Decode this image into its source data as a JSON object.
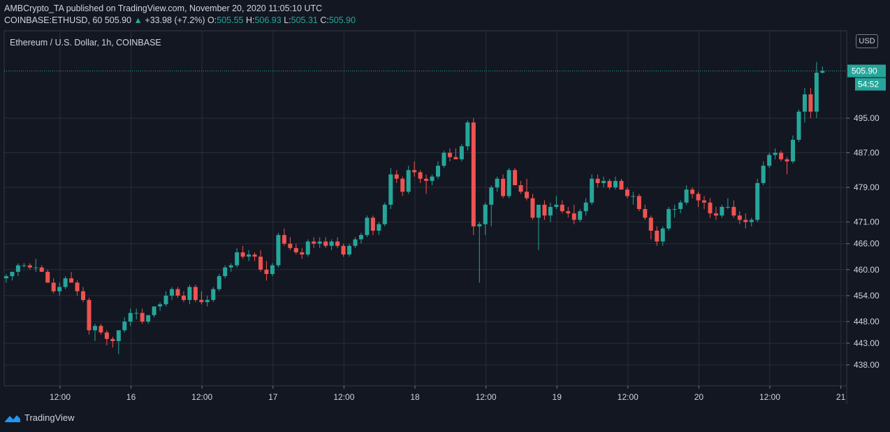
{
  "publish_line": {
    "author": "AMBCrypto_TA",
    "text": "published on TradingView.com, November 20, 2020 11:05:10 UTC"
  },
  "quote_line": {
    "symbol": "COINBASE:ETHUSD, 60",
    "last": "505.90",
    "change": "+33.98 (+7.2%)",
    "open_label": "O:",
    "open": "505.55",
    "high_label": "H:",
    "high": "506.93",
    "low_label": "L:",
    "low": "505.31",
    "close_label": "C:",
    "close": "505.90"
  },
  "currency_button": "USD",
  "brand": "TradingView",
  "colors": {
    "up": "#26a69a",
    "down": "#ef5350",
    "background": "#131722",
    "grid": "#2a2e39"
  },
  "chart_data": {
    "type": "candlestick",
    "title": "Ethereum / U.S. Dollar, 1h, COINBASE",
    "ylabel": "USD",
    "ylim": [
      434,
      515
    ],
    "y_ticks": [
      438,
      443,
      448,
      454,
      460,
      466,
      471,
      479,
      487,
      495
    ],
    "y_tick_labels": [
      "438.00",
      "443.00",
      "448.00",
      "454.00",
      "460.00",
      "466.00",
      "471.00",
      "479.00",
      "487.00",
      "495.00"
    ],
    "x_ticks": [
      {
        "hour": 12,
        "label": "12:00"
      },
      {
        "hour": 24,
        "label": "16"
      },
      {
        "hour": 36,
        "label": "12:00"
      },
      {
        "hour": 48,
        "label": "17"
      },
      {
        "hour": 60,
        "label": "12:00"
      },
      {
        "hour": 72,
        "label": "18"
      },
      {
        "hour": 84,
        "label": "12:00"
      },
      {
        "hour": 96,
        "label": "19"
      },
      {
        "hour": 108,
        "label": "12:00"
      },
      {
        "hour": 120,
        "label": "20"
      },
      {
        "hour": 132,
        "label": "12:00"
      },
      {
        "hour": 144,
        "label": "21"
      }
    ],
    "last_price": {
      "value": 505.9,
      "label": "505.90",
      "countdown": "54:52"
    },
    "candles": [
      [
        458.0,
        459.0,
        457.0,
        458.5
      ],
      [
        458.5,
        459.5,
        457.5,
        459.5
      ],
      [
        459.5,
        461.5,
        458.5,
        461.0
      ],
      [
        461.0,
        461.5,
        460.5,
        461.0
      ],
      [
        461.0,
        461.5,
        460.0,
        460.5
      ],
      [
        460.5,
        462.5,
        459.5,
        460.5
      ],
      [
        460.5,
        461.0,
        459.5,
        459.5
      ],
      [
        459.5,
        460.0,
        457.0,
        457.0
      ],
      [
        457.0,
        458.0,
        454.5,
        455.0
      ],
      [
        455.0,
        457.0,
        454.0,
        456.0
      ],
      [
        456.0,
        458.5,
        455.5,
        458.0
      ],
      [
        458.0,
        459.5,
        457.0,
        457.0
      ],
      [
        457.0,
        457.5,
        454.0,
        455.0
      ],
      [
        455.0,
        456.0,
        452.5,
        453.0
      ],
      [
        453.0,
        453.5,
        445.0,
        446.0
      ],
      [
        446.0,
        447.5,
        443.5,
        447.0
      ],
      [
        447.0,
        447.5,
        445.0,
        445.5
      ],
      [
        445.5,
        446.0,
        442.5,
        444.0
      ],
      [
        444.0,
        444.5,
        442.0,
        443.5
      ],
      [
        443.5,
        446.0,
        440.5,
        446.0
      ],
      [
        446.0,
        449.0,
        445.5,
        448.0
      ],
      [
        448.0,
        451.0,
        447.0,
        450.0
      ],
      [
        450.0,
        451.0,
        448.5,
        450.0
      ],
      [
        450.0,
        451.0,
        447.5,
        448.0
      ],
      [
        448.0,
        449.0,
        447.5,
        449.5
      ],
      [
        449.5,
        451.5,
        449.0,
        451.5
      ],
      [
        451.5,
        452.5,
        450.5,
        452.0
      ],
      [
        452.0,
        455.0,
        451.5,
        454.0
      ],
      [
        454.0,
        456.0,
        453.0,
        455.5
      ],
      [
        455.5,
        456.0,
        453.5,
        454.0
      ],
      [
        454.0,
        455.0,
        452.5,
        453.0
      ],
      [
        453.0,
        456.5,
        452.0,
        456.0
      ],
      [
        456.0,
        456.5,
        452.5,
        453.0
      ],
      [
        453.0,
        455.0,
        452.0,
        452.5
      ],
      [
        452.5,
        454.0,
        451.5,
        453.0
      ],
      [
        453.0,
        456.0,
        452.5,
        455.5
      ],
      [
        455.5,
        459.0,
        455.0,
        458.5
      ],
      [
        458.5,
        461.0,
        458.0,
        460.5
      ],
      [
        460.5,
        461.5,
        459.5,
        461.0
      ],
      [
        461.0,
        465.0,
        460.5,
        464.0
      ],
      [
        464.0,
        465.5,
        462.5,
        463.0
      ],
      [
        463.0,
        464.5,
        462.0,
        463.5
      ],
      [
        463.5,
        464.0,
        462.0,
        463.0
      ],
      [
        463.0,
        464.5,
        459.5,
        460.0
      ],
      [
        460.0,
        462.0,
        457.5,
        459.0
      ],
      [
        459.0,
        461.5,
        458.5,
        461.0
      ],
      [
        461.0,
        468.5,
        460.5,
        468.0
      ],
      [
        468.0,
        469.5,
        465.5,
        466.0
      ],
      [
        466.0,
        467.5,
        464.5,
        465.0
      ],
      [
        465.0,
        466.0,
        463.5,
        464.0
      ],
      [
        464.0,
        465.0,
        462.5,
        463.5
      ],
      [
        463.5,
        467.0,
        463.0,
        466.5
      ],
      [
        466.5,
        467.5,
        465.0,
        466.0
      ],
      [
        466.0,
        467.5,
        465.0,
        466.5
      ],
      [
        466.5,
        467.5,
        465.0,
        465.5
      ],
      [
        465.5,
        467.0,
        464.5,
        466.5
      ],
      [
        466.5,
        467.5,
        465.0,
        465.5
      ],
      [
        465.5,
        466.0,
        463.0,
        463.5
      ],
      [
        463.5,
        466.0,
        463.0,
        465.5
      ],
      [
        465.5,
        467.5,
        465.0,
        467.0
      ],
      [
        467.0,
        468.5,
        466.0,
        468.0
      ],
      [
        468.0,
        472.5,
        467.5,
        472.0
      ],
      [
        472.0,
        472.5,
        468.0,
        469.0
      ],
      [
        469.0,
        471.0,
        468.0,
        470.5
      ],
      [
        470.5,
        475.5,
        470.0,
        475.0
      ],
      [
        475.0,
        483.5,
        474.0,
        482.0
      ],
      [
        482.0,
        483.0,
        480.0,
        481.0
      ],
      [
        481.0,
        481.5,
        477.0,
        478.0
      ],
      [
        478.0,
        484.0,
        477.5,
        483.0
      ],
      [
        483.0,
        485.0,
        481.5,
        482.5
      ],
      [
        482.5,
        483.0,
        480.0,
        481.0
      ],
      [
        481.0,
        482.0,
        477.5,
        480.5
      ],
      [
        480.5,
        482.0,
        479.5,
        481.5
      ],
      [
        481.5,
        485.0,
        481.0,
        484.0
      ],
      [
        484.0,
        487.5,
        483.5,
        487.0
      ],
      [
        487.0,
        488.0,
        485.0,
        486.0
      ],
      [
        486.0,
        488.0,
        485.5,
        485.5
      ],
      [
        485.5,
        489.0,
        485.0,
        488.5
      ],
      [
        488.5,
        494.5,
        487.5,
        494.0
      ],
      [
        494.0,
        495.0,
        468.0,
        470.0
      ],
      [
        470.0,
        471.0,
        457.0,
        470.5
      ],
      [
        470.5,
        475.5,
        468.0,
        475.0
      ],
      [
        475.0,
        479.5,
        470.0,
        479.0
      ],
      [
        479.0,
        481.5,
        478.0,
        481.0
      ],
      [
        481.0,
        482.0,
        476.5,
        477.0
      ],
      [
        477.0,
        483.5,
        476.5,
        483.0
      ],
      [
        483.0,
        483.5,
        479.5,
        479.5
      ],
      [
        479.5,
        480.5,
        477.5,
        478.0
      ],
      [
        478.0,
        481.0,
        476.0,
        476.5
      ],
      [
        476.5,
        477.5,
        471.5,
        472.0
      ],
      [
        472.0,
        474.5,
        464.5,
        475.0
      ],
      [
        475.0,
        476.0,
        471.5,
        472.5
      ],
      [
        472.5,
        475.5,
        471.0,
        474.5
      ],
      [
        474.5,
        477.0,
        474.0,
        475.0
      ],
      [
        475.0,
        476.0,
        473.0,
        473.5
      ],
      [
        473.5,
        474.5,
        472.0,
        473.0
      ],
      [
        473.0,
        475.0,
        470.5,
        471.5
      ],
      [
        471.5,
        474.0,
        471.0,
        473.5
      ],
      [
        473.5,
        476.5,
        472.5,
        475.5
      ],
      [
        475.5,
        482.0,
        475.0,
        481.0
      ],
      [
        481.0,
        482.0,
        479.0,
        480.0
      ],
      [
        480.0,
        481.5,
        479.0,
        480.5
      ],
      [
        480.5,
        481.0,
        478.5,
        479.0
      ],
      [
        479.0,
        481.5,
        478.5,
        480.5
      ],
      [
        480.5,
        481.0,
        478.5,
        478.5
      ],
      [
        478.5,
        479.0,
        476.5,
        477.0
      ],
      [
        477.0,
        478.0,
        475.0,
        477.0
      ],
      [
        477.0,
        477.5,
        473.5,
        474.0
      ],
      [
        474.0,
        475.0,
        471.5,
        472.0
      ],
      [
        472.0,
        472.5,
        467.0,
        469.0
      ],
      [
        469.0,
        470.0,
        465.5,
        466.5
      ],
      [
        466.5,
        470.0,
        465.5,
        469.5
      ],
      [
        469.5,
        474.5,
        469.0,
        474.0
      ],
      [
        474.0,
        475.0,
        472.0,
        474.0
      ],
      [
        474.0,
        476.0,
        473.0,
        475.5
      ],
      [
        475.5,
        479.5,
        475.0,
        478.5
      ],
      [
        478.5,
        479.0,
        476.5,
        477.5
      ],
      [
        477.5,
        478.0,
        474.5,
        476.0
      ],
      [
        476.0,
        477.0,
        474.0,
        475.5
      ],
      [
        475.5,
        476.5,
        472.0,
        473.0
      ],
      [
        473.0,
        474.5,
        471.5,
        472.5
      ],
      [
        472.5,
        475.0,
        472.0,
        474.5
      ],
      [
        474.5,
        476.5,
        474.0,
        474.5
      ],
      [
        474.5,
        476.0,
        472.0,
        472.5
      ],
      [
        472.5,
        473.5,
        470.5,
        471.5
      ],
      [
        471.5,
        473.0,
        469.5,
        471.0
      ],
      [
        471.0,
        472.0,
        470.0,
        471.5
      ],
      [
        471.5,
        481.0,
        471.0,
        480.0
      ],
      [
        480.0,
        485.0,
        479.5,
        484.0
      ],
      [
        484.0,
        487.0,
        483.5,
        486.5
      ],
      [
        486.5,
        488.0,
        485.5,
        487.0
      ],
      [
        487.0,
        487.5,
        485.0,
        485.5
      ],
      [
        485.5,
        486.0,
        482.0,
        485.0
      ],
      [
        485.0,
        491.0,
        484.5,
        490.0
      ],
      [
        490.0,
        497.0,
        489.5,
        496.5
      ],
      [
        496.5,
        502.0,
        494.0,
        500.5
      ],
      [
        500.5,
        502.0,
        495.0,
        496.5
      ],
      [
        496.5,
        508.0,
        495.0,
        505.5
      ],
      [
        505.5,
        506.9,
        505.3,
        505.9
      ]
    ]
  }
}
